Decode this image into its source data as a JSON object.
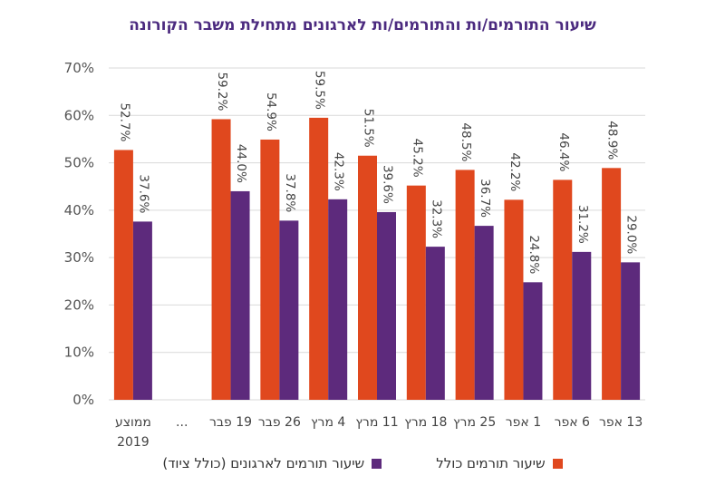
{
  "chart_data": {
    "type": "bar",
    "title": "שיעור התורמים/ות והתורמים/ות לארגונים מתחילת משבר הקורונה",
    "categories": [
      "ממוצע 2019",
      "...",
      "19 פבר",
      "26 פבר",
      "4 מרץ",
      "11 מרץ",
      "18 מרץ",
      "25 מרץ",
      "1 אפר",
      "6 אפר",
      "13 אפר"
    ],
    "series": [
      {
        "name": "שיעור תורמים כולל",
        "color": "#e0481e",
        "values": [
          52.7,
          null,
          59.2,
          54.9,
          59.5,
          51.5,
          45.2,
          48.5,
          42.2,
          46.4,
          48.9
        ],
        "labels": [
          "52.7%",
          "",
          "59.2%",
          "54.9%",
          "59.5%",
          "51.5%",
          "45.2%",
          "48.5%",
          "42.2%",
          "46.4%",
          "48.9%"
        ]
      },
      {
        "name": "שיעור תורמים לארגונים (כולל ציוד)",
        "color": "#5d2a7c",
        "values": [
          37.6,
          null,
          44.0,
          37.8,
          42.3,
          39.6,
          32.3,
          36.7,
          24.8,
          31.2,
          29.0
        ],
        "labels": [
          "37.6%",
          "",
          "44.0%",
          "37.8%",
          "42.3%",
          "39.6%",
          "32.3%",
          "36.7%",
          "24.8%",
          "31.2%",
          "29.0%"
        ]
      }
    ],
    "yticks": [
      "0%",
      "10%",
      "20%",
      "30%",
      "40%",
      "50%",
      "60%",
      "70%"
    ],
    "ylim": [
      0,
      70
    ],
    "grid": true,
    "legend_position": "bottom"
  }
}
